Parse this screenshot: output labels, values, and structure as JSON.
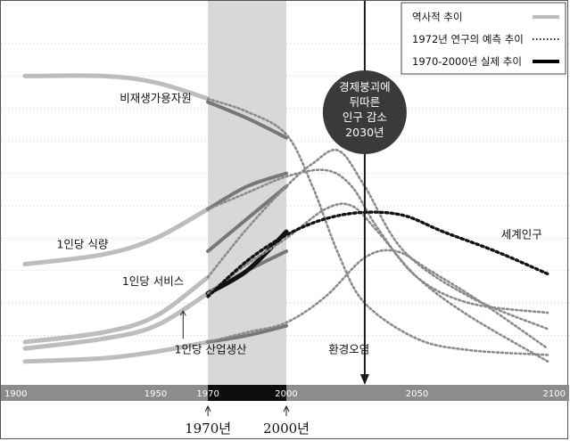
{
  "chart_data": {
    "type": "line",
    "x_ticks": [
      "1900",
      "1950",
      "1970",
      "2000",
      "2050",
      "2100"
    ],
    "xlim": [
      1900,
      2100
    ],
    "ylim": [
      0,
      10
    ],
    "grid": true,
    "legend_position": "top-right",
    "legend": [
      {
        "label": "역사적 추이",
        "style": "solid-gray"
      },
      {
        "label": "1972년 연구의 예측 추이",
        "style": "dotted"
      },
      {
        "label": "1970-2000년 실제 추이",
        "style": "solid-black"
      }
    ],
    "period_shade": [
      1970,
      2000
    ],
    "marker_year": 2030,
    "marker_text": [
      "경제붕괴에",
      "뒤따른",
      "인구 감소",
      "2030년"
    ],
    "bottom_marks": [
      "1970년",
      "2000년"
    ],
    "series": [
      {
        "name": "비재생가용자원",
        "historical": [
          [
            1900,
            9.0
          ],
          [
            1930,
            9.0
          ],
          [
            1950,
            8.8
          ],
          [
            1970,
            8.3
          ]
        ],
        "actual": [
          [
            1970,
            8.2
          ],
          [
            1985,
            7.7
          ],
          [
            2000,
            7.1
          ]
        ],
        "forecast": [
          [
            1970,
            8.3
          ],
          [
            1985,
            7.9
          ],
          [
            2000,
            7.2
          ],
          [
            2010,
            5.6
          ],
          [
            2020,
            3.5
          ],
          [
            2030,
            2.0
          ],
          [
            2050,
            0.9
          ],
          [
            2070,
            0.55
          ],
          [
            2100,
            0.4
          ]
        ]
      },
      {
        "name": "1인당 식량",
        "historical": [
          [
            1900,
            3.2
          ],
          [
            1930,
            3.5
          ],
          [
            1950,
            4.0
          ],
          [
            1970,
            4.9
          ]
        ],
        "actual": [
          [
            1970,
            4.9
          ],
          [
            1985,
            5.6
          ],
          [
            2000,
            6.0
          ]
        ],
        "forecast": [
          [
            1970,
            4.9
          ],
          [
            1985,
            5.4
          ],
          [
            2000,
            5.9
          ],
          [
            2015,
            6.1
          ],
          [
            2025,
            5.6
          ],
          [
            2035,
            4.3
          ],
          [
            2050,
            2.8
          ],
          [
            2070,
            2.0
          ],
          [
            2100,
            1.7
          ]
        ]
      },
      {
        "name": "1인당 서비스",
        "historical": [
          [
            1900,
            0.8
          ],
          [
            1930,
            1.1
          ],
          [
            1950,
            1.6
          ],
          [
            1970,
            2.8
          ]
        ],
        "actual": [
          [
            1970,
            3.6
          ],
          [
            1985,
            4.6
          ],
          [
            2000,
            5.6
          ]
        ],
        "forecast": [
          [
            1970,
            2.8
          ],
          [
            1985,
            4.3
          ],
          [
            2000,
            5.6
          ],
          [
            2010,
            6.3
          ],
          [
            2020,
            6.7
          ],
          [
            2030,
            5.6
          ],
          [
            2045,
            3.6
          ],
          [
            2070,
            2.2
          ],
          [
            2100,
            1.2
          ]
        ]
      },
      {
        "name": "1인당 산업생산",
        "historical": [
          [
            1900,
            0.6
          ],
          [
            1930,
            0.9
          ],
          [
            1950,
            1.3
          ],
          [
            1970,
            2.3
          ]
        ],
        "actual": [
          [
            1970,
            2.3
          ],
          [
            1985,
            3.0
          ],
          [
            2000,
            3.6
          ]
        ],
        "forecast": [
          [
            1970,
            2.3
          ],
          [
            1985,
            3.2
          ],
          [
            2000,
            4.0
          ],
          [
            2015,
            4.9
          ],
          [
            2025,
            5.0
          ],
          [
            2035,
            4.2
          ],
          [
            2050,
            2.8
          ],
          [
            2070,
            1.6
          ],
          [
            2100,
            0.2
          ]
        ]
      },
      {
        "name": "세계인구",
        "historical": [],
        "actual": [
          [
            1970,
            2.3
          ],
          [
            1985,
            3.0
          ],
          [
            2000,
            4.2
          ]
        ],
        "forecast": [
          [
            1970,
            2.2
          ],
          [
            1985,
            3.3
          ],
          [
            2000,
            4.1
          ],
          [
            2015,
            4.6
          ],
          [
            2030,
            4.8
          ],
          [
            2045,
            4.7
          ],
          [
            2060,
            4.2
          ],
          [
            2080,
            3.6
          ],
          [
            2100,
            2.9
          ]
        ]
      },
      {
        "name": "환경오염",
        "historical": [
          [
            1900,
            0.2
          ],
          [
            1930,
            0.3
          ],
          [
            1950,
            0.5
          ],
          [
            1970,
            0.8
          ]
        ],
        "actual": [
          [
            1970,
            0.8
          ],
          [
            1985,
            1.0
          ],
          [
            2000,
            1.3
          ]
        ],
        "forecast": [
          [
            1970,
            0.8
          ],
          [
            1985,
            1.1
          ],
          [
            2000,
            1.4
          ],
          [
            2015,
            2.2
          ],
          [
            2030,
            3.4
          ],
          [
            2042,
            3.6
          ],
          [
            2055,
            3.0
          ],
          [
            2075,
            2.0
          ],
          [
            2100,
            0.6
          ]
        ]
      }
    ]
  }
}
